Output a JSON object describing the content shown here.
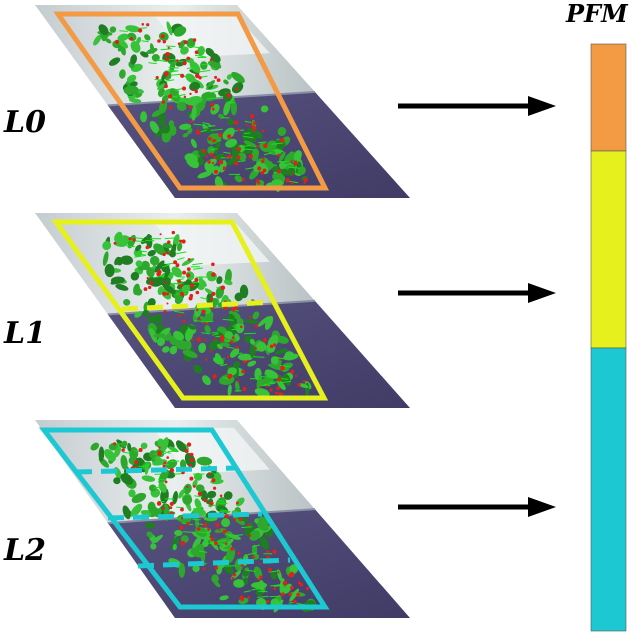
{
  "levels": [
    {
      "label": "L0",
      "partitions": 1,
      "box_color": "#F39A45"
    },
    {
      "label": "L1",
      "partitions": 2,
      "box_color": "#E6F01C"
    },
    {
      "label": "L2",
      "partitions": 4,
      "box_color": "#1CC8D2"
    }
  ],
  "pyramid": {
    "label": "PFM",
    "segments": [
      {
        "level": "L0",
        "color": "#F39A45"
      },
      {
        "level": "L1",
        "color": "#E6F01C"
      },
      {
        "level": "L2",
        "color": "#1CC8D2"
      }
    ]
  },
  "colors": {
    "floor": "#4E4A7A",
    "wall": "#D4DAD8",
    "foliage": "#2DA82D",
    "points": "#E0201A",
    "arrow": "#000000"
  }
}
